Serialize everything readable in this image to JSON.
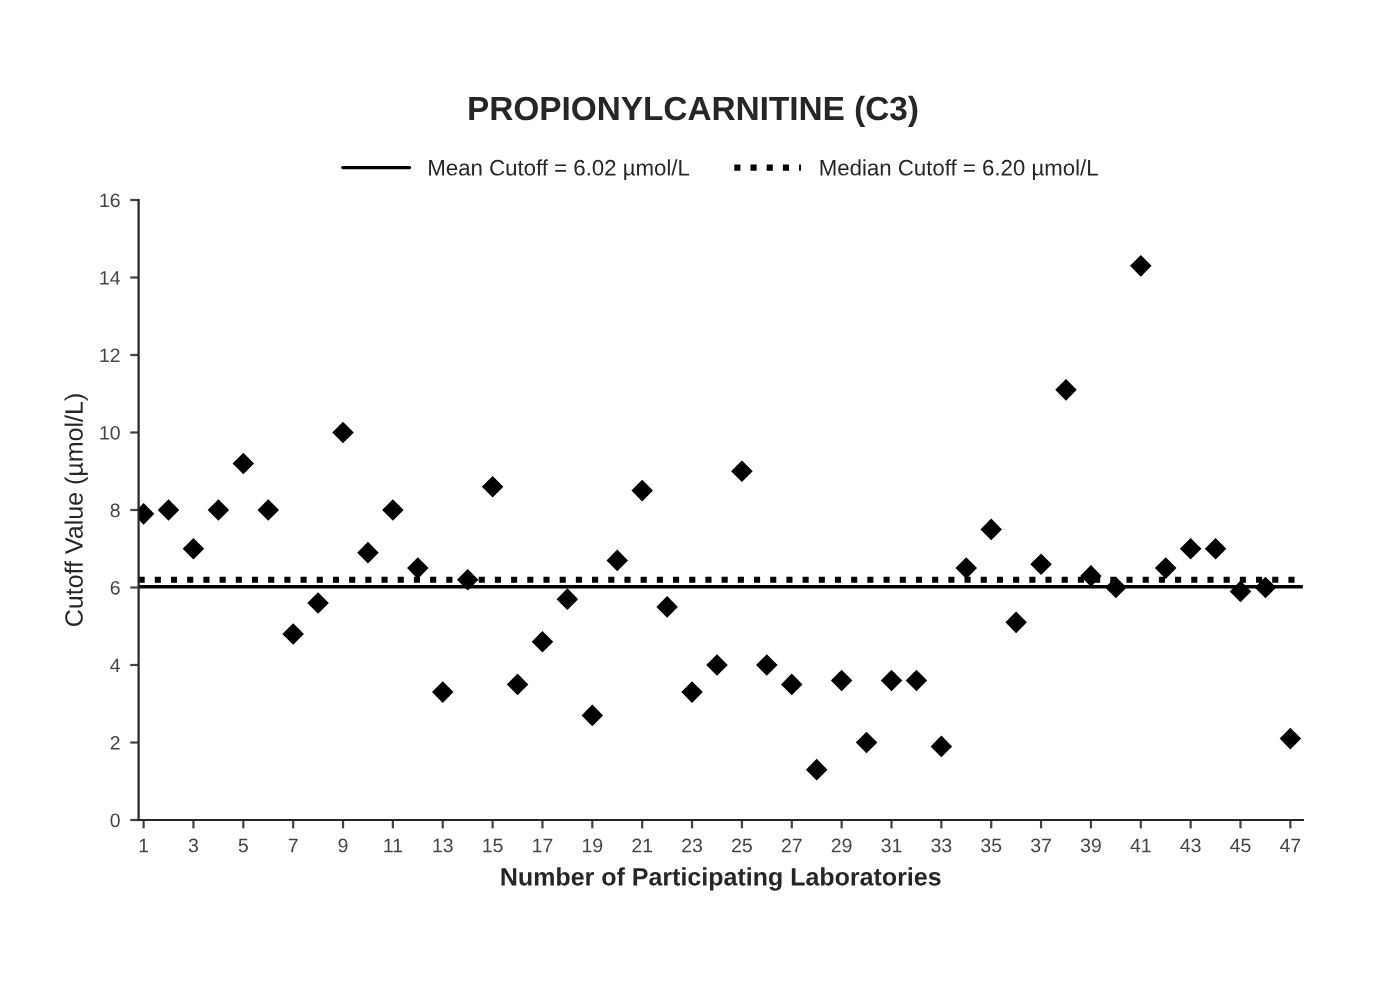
{
  "chart_data": {
    "type": "scatter",
    "title": "PROPIONYLCARNITINE (C3)",
    "xlabel": "Number of Participating Laboratories",
    "ylabel": "Cutoff Value (µmol/L)",
    "x": [
      1,
      2,
      3,
      4,
      5,
      6,
      7,
      8,
      9,
      10,
      11,
      12,
      13,
      14,
      15,
      16,
      17,
      18,
      19,
      20,
      21,
      22,
      23,
      24,
      25,
      26,
      27,
      28,
      29,
      30,
      31,
      32,
      33,
      34,
      35,
      36,
      37,
      38,
      39,
      40,
      41,
      42,
      43,
      44,
      45,
      46,
      47
    ],
    "series": [
      {
        "color": "#000000",
        "values": [
          7.9,
          8.0,
          7.0,
          8.0,
          9.2,
          8.0,
          4.8,
          5.6,
          10.0,
          6.9,
          8.0,
          6.5,
          3.3,
          6.2,
          8.6,
          3.5,
          4.6,
          5.7,
          2.7,
          6.7,
          8.5,
          5.5,
          3.3,
          4.0,
          9.0,
          4.0,
          3.5,
          1.3,
          3.6,
          2.0,
          3.6,
          3.6,
          1.9,
          6.5,
          7.5,
          5.1,
          6.6,
          11.1,
          6.3,
          6.0,
          14.3,
          6.5,
          7.0,
          7.0,
          5.9,
          6.0,
          2.1
        ]
      }
    ],
    "marker": "diamond",
    "xlim": [
      0.8,
      47.5
    ],
    "xticks": [
      1,
      3,
      5,
      7,
      9,
      11,
      13,
      15,
      17,
      19,
      21,
      23,
      25,
      27,
      29,
      31,
      33,
      35,
      37,
      39,
      41,
      43,
      45,
      47
    ],
    "ylim": [
      0,
      16
    ],
    "yticks": [
      0,
      2,
      4,
      6,
      8,
      10,
      12,
      14,
      16
    ],
    "ref_lines": [
      {
        "axis": "y",
        "value": 6.02,
        "label": "Mean Cutoff = 6.02 µmol/L",
        "color": "#000000",
        "line_style": "solid"
      },
      {
        "axis": "y",
        "value": 6.2,
        "label": "Median Cutoff = 6.20 µmol/L",
        "color": "#000000",
        "line_style": "dotted"
      }
    ],
    "legend": "top",
    "grid": false
  }
}
